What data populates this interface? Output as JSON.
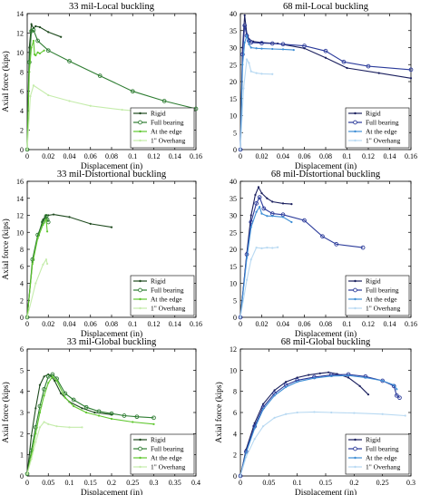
{
  "chart_data": [
    {
      "type": "line",
      "title": "33 mil-Local buckling",
      "xlabel": "Displacement (in)",
      "ylabel": "Axial force (kips)",
      "xlim": [
        0,
        0.16
      ],
      "ylim": [
        0,
        14
      ],
      "xticks": [
        "0",
        "0.02",
        "0.04",
        "0.06",
        "0.08",
        "0.1",
        "0.12",
        "0.14",
        "0.16"
      ],
      "yticks": [
        "0",
        "2",
        "4",
        "6",
        "8",
        "10",
        "12",
        "14"
      ],
      "grid": false,
      "legend": "bottom-right",
      "series": [
        {
          "name": "Rigid",
          "color": "#1e4a1e",
          "marker": "dot",
          "x": [
            0,
            0.002,
            0.004,
            0.006,
            0.008,
            0.012,
            0.02,
            0.032
          ],
          "y": [
            0,
            10.5,
            12.9,
            12.5,
            12.7,
            12.6,
            12.1,
            11.6
          ]
        },
        {
          "name": "Full bearing",
          "color": "#2e7d32",
          "marker": "circle",
          "x": [
            0,
            0.002,
            0.004,
            0.006,
            0.01,
            0.02,
            0.04,
            0.069,
            0.1,
            0.13,
            0.16
          ],
          "y": [
            0,
            9,
            12.2,
            12.3,
            11.2,
            10.2,
            9.1,
            7.6,
            6,
            5,
            4.2
          ]
        },
        {
          "name": "At the edge",
          "color": "#5fc72e",
          "marker": "dot",
          "x": [
            0,
            0.002,
            0.004,
            0.006,
            0.007,
            0.008,
            0.01,
            0.012,
            0.016
          ],
          "y": [
            0,
            8,
            10.5,
            11.2,
            9.8,
            9.7,
            10,
            9.9,
            10.2
          ]
        },
        {
          "name": "1\" Overhang",
          "color": "#c5ecab",
          "marker": "dot",
          "x": [
            0,
            0.003,
            0.006,
            0.02,
            0.04,
            0.06,
            0.09,
            0.11,
            0.13,
            0.15
          ],
          "y": [
            0,
            5.5,
            6.6,
            5.6,
            5.0,
            4.5,
            4.1,
            3.9,
            3.8,
            3.7
          ]
        }
      ]
    },
    {
      "type": "line",
      "title": "68 mil-Local buckling",
      "xlabel": "Displacement (in)",
      "ylabel": "",
      "xlim": [
        0,
        0.16
      ],
      "ylim": [
        0,
        40
      ],
      "xticks": [
        "0",
        "0.02",
        "0.04",
        "0.06",
        "0.08",
        "0.1",
        "0.12",
        "0.14",
        "0.16"
      ],
      "yticks": [
        "0",
        "5",
        "10",
        "15",
        "20",
        "25",
        "30",
        "35",
        "40"
      ],
      "grid": false,
      "legend": "bottom-right",
      "series": [
        {
          "name": "Rigid",
          "color": "#1a1f5e",
          "marker": "dot",
          "x": [
            0,
            0.002,
            0.004,
            0.006,
            0.008,
            0.012,
            0.02,
            0.035,
            0.06,
            0.08,
            0.1,
            0.13,
            0.16
          ],
          "y": [
            0,
            30,
            39.5,
            34,
            32.5,
            31.8,
            31.5,
            31.2,
            29.8,
            27,
            24,
            22.5,
            21
          ]
        },
        {
          "name": "Full bearing",
          "color": "#2a3a9a",
          "marker": "circle",
          "x": [
            0,
            0.002,
            0.004,
            0.006,
            0.008,
            0.01,
            0.02,
            0.03,
            0.04,
            0.06,
            0.08,
            0.097,
            0.12,
            0.16
          ],
          "y": [
            0,
            28,
            36.5,
            33.5,
            32,
            31.5,
            31.3,
            31.2,
            31,
            30.5,
            29,
            25.8,
            24.5,
            23.5
          ]
        },
        {
          "name": "At the edge",
          "color": "#3f8fd6",
          "marker": "dot",
          "x": [
            0,
            0.002,
            0.004,
            0.006,
            0.008,
            0.01,
            0.015,
            0.02,
            0.03,
            0.04,
            0.05
          ],
          "y": [
            0,
            25,
            31.5,
            33.5,
            31,
            30,
            29.8,
            29.7,
            29.6,
            29.5,
            29.3
          ]
        },
        {
          "name": "1\" Overhang",
          "color": "#b8d9f2",
          "marker": "dot",
          "x": [
            0,
            0.003,
            0.006,
            0.008,
            0.01,
            0.015,
            0.02,
            0.03
          ],
          "y": [
            0,
            18,
            26.5,
            25.5,
            23,
            22.5,
            22.3,
            22.2
          ]
        }
      ]
    },
    {
      "type": "line",
      "title": "33 mil-Distortional buckling",
      "xlabel": "Displacement (in)",
      "ylabel": "Axial force (kips)",
      "xlim": [
        0,
        0.16
      ],
      "ylim": [
        0,
        16
      ],
      "xticks": [
        "0",
        "0.02",
        "0.04",
        "0.06",
        "0.08",
        "0.1",
        "0.12",
        "0.14",
        "0.16"
      ],
      "yticks": [
        "0",
        "2",
        "4",
        "6",
        "8",
        "10",
        "12",
        "14",
        "16"
      ],
      "grid": false,
      "legend": "bottom-right",
      "series": [
        {
          "name": "Rigid",
          "color": "#1e4a1e",
          "marker": "dot",
          "x": [
            0,
            0.005,
            0.01,
            0.015,
            0.018,
            0.02,
            0.025,
            0.04,
            0.06,
            0.08
          ],
          "y": [
            0,
            6.5,
            9.5,
            11.5,
            12,
            12,
            12.1,
            11.8,
            11,
            10.6
          ]
        },
        {
          "name": "Full bearing",
          "color": "#2e7d32",
          "marker": "circle",
          "x": [
            0,
            0.005,
            0.01,
            0.015,
            0.018,
            0.019,
            0.02
          ],
          "y": [
            0,
            6.8,
            9.7,
            11.2,
            11.9,
            11.5,
            11.2
          ]
        },
        {
          "name": "At the edge",
          "color": "#5fc72e",
          "marker": "dot",
          "x": [
            0,
            0.005,
            0.01,
            0.015,
            0.018,
            0.019
          ],
          "y": [
            0,
            6.3,
            9.3,
            10.9,
            11.5,
            10.1
          ]
        },
        {
          "name": "1\" Overhang",
          "color": "#c5ecab",
          "marker": "dot",
          "x": [
            0,
            0.008,
            0.015,
            0.018,
            0.019
          ],
          "y": [
            0,
            4,
            6.2,
            6.8,
            6.3
          ]
        }
      ]
    },
    {
      "type": "line",
      "title": "68 mil-Distortional buckling",
      "xlabel": "Displacement (in)",
      "ylabel": "",
      "xlim": [
        0,
        0.16
      ],
      "ylim": [
        0,
        40
      ],
      "xticks": [
        "0",
        "0.02",
        "0.04",
        "0.06",
        "0.08",
        "0.1",
        "0.12",
        "0.14",
        "0.16"
      ],
      "yticks": [
        "0",
        "5",
        "10",
        "15",
        "20",
        "25",
        "30",
        "35",
        "40"
      ],
      "grid": false,
      "legend": "bottom-right",
      "series": [
        {
          "name": "Rigid",
          "color": "#1a1f5e",
          "marker": "dot",
          "x": [
            0,
            0.006,
            0.01,
            0.014,
            0.017,
            0.02,
            0.025,
            0.03,
            0.04,
            0.048
          ],
          "y": [
            0,
            19,
            30,
            36,
            38.3,
            36.5,
            35,
            34,
            33.5,
            33.3
          ]
        },
        {
          "name": "Full bearing",
          "color": "#2a3a9a",
          "marker": "circle",
          "x": [
            0,
            0.006,
            0.01,
            0.015,
            0.018,
            0.022,
            0.03,
            0.04,
            0.06,
            0.077,
            0.09,
            0.115
          ],
          "y": [
            0,
            18.5,
            28,
            33.5,
            35.3,
            32,
            30.5,
            30.2,
            28.5,
            23.8,
            21.5,
            20.5
          ]
        },
        {
          "name": "At the edge",
          "color": "#3f8fd6",
          "marker": "dot",
          "x": [
            0,
            0.006,
            0.01,
            0.015,
            0.018,
            0.02,
            0.025,
            0.03,
            0.04,
            0.048
          ],
          "y": [
            0,
            17.5,
            26.5,
            31,
            32.5,
            30.5,
            29.8,
            29.8,
            29.5,
            28
          ]
        },
        {
          "name": "1\" Overhang",
          "color": "#b8d9f2",
          "marker": "dot",
          "x": [
            0,
            0.006,
            0.01,
            0.015,
            0.02,
            0.025,
            0.03,
            0.035
          ],
          "y": [
            0,
            11,
            17,
            20.5,
            20.3,
            20.5,
            20.4,
            20.6
          ]
        }
      ]
    },
    {
      "type": "line",
      "title": "33 mil-Global buckling",
      "xlabel": "Displacement (in)",
      "ylabel": "Axial force (kips)",
      "xlim": [
        0,
        0.4
      ],
      "ylim": [
        0,
        6
      ],
      "xticks": [
        "0",
        "0.05",
        "0.1",
        "0.15",
        "0.2",
        "0.25",
        "0.3",
        "0.35",
        "0.4"
      ],
      "yticks": [
        "0",
        "1",
        "2",
        "3",
        "4",
        "5",
        "6"
      ],
      "grid": false,
      "legend": "bottom-right",
      "series": [
        {
          "name": "Rigid",
          "color": "#1e4a1e",
          "marker": "dot",
          "x": [
            0,
            0.01,
            0.02,
            0.03,
            0.04,
            0.05,
            0.055,
            0.065,
            0.08,
            0.1,
            0.13,
            0.16,
            0.2
          ],
          "y": [
            0.1,
            1.9,
            3.2,
            4.3,
            4.7,
            4.8,
            4.75,
            4.5,
            3.9,
            3.5,
            3.2,
            3.0,
            2.9
          ]
        },
        {
          "name": "Full bearing",
          "color": "#2e7d32",
          "marker": "circle",
          "x": [
            0,
            0.01,
            0.02,
            0.03,
            0.04,
            0.05,
            0.06,
            0.07,
            0.09,
            0.11,
            0.14,
            0.17,
            0.2,
            0.23,
            0.26,
            0.3
          ],
          "y": [
            0.1,
            1.2,
            2.3,
            3.3,
            4.1,
            4.7,
            4.8,
            4.6,
            3.9,
            3.6,
            3.25,
            3.05,
            2.95,
            2.85,
            2.8,
            2.75
          ]
        },
        {
          "name": "At the edge",
          "color": "#5fc72e",
          "marker": "dot",
          "x": [
            0,
            0.01,
            0.02,
            0.03,
            0.04,
            0.05,
            0.06,
            0.07,
            0.09,
            0.11,
            0.14,
            0.17,
            0.2,
            0.25,
            0.3
          ],
          "y": [
            0.1,
            1.0,
            2.0,
            3.0,
            3.8,
            4.4,
            4.7,
            4.5,
            3.7,
            3.3,
            3.0,
            2.85,
            2.7,
            2.55,
            2.45
          ]
        },
        {
          "name": "1\" Overhang",
          "color": "#c5ecab",
          "marker": "dot",
          "x": [
            0,
            0.01,
            0.02,
            0.03,
            0.04,
            0.05,
            0.07,
            0.1,
            0.13
          ],
          "y": [
            0.1,
            0.8,
            1.6,
            2.3,
            2.55,
            2.45,
            2.35,
            2.3,
            2.3
          ]
        }
      ]
    },
    {
      "type": "line",
      "title": "68 mil-Global buckling",
      "xlabel": "Displacement (in)",
      "ylabel": "Axial force (kips)",
      "xlim": [
        0,
        0.3
      ],
      "ylim": [
        0,
        12
      ],
      "xticks": [
        "0",
        "0.05",
        "0.1",
        "0.15",
        "0.2",
        "0.25",
        "0.3"
      ],
      "yticks": [
        "0",
        "2",
        "4",
        "6",
        "8",
        "10",
        "12"
      ],
      "grid": false,
      "legend": "bottom-right",
      "series": [
        {
          "name": "Rigid",
          "color": "#1a1f5e",
          "marker": "dot",
          "x": [
            0,
            0.01,
            0.025,
            0.04,
            0.06,
            0.08,
            0.1,
            0.12,
            0.14,
            0.155,
            0.17,
            0.19,
            0.21,
            0.225
          ],
          "y": [
            0,
            2.5,
            5,
            6.8,
            8.1,
            8.9,
            9.3,
            9.55,
            9.7,
            9.8,
            9.65,
            9.3,
            8.5,
            7.7
          ]
        },
        {
          "name": "Full bearing",
          "color": "#2a3a9a",
          "marker": "circle",
          "x": [
            0,
            0.01,
            0.025,
            0.04,
            0.06,
            0.08,
            0.1,
            0.13,
            0.16,
            0.19,
            0.22,
            0.25,
            0.27,
            0.275,
            0.28
          ],
          "y": [
            0,
            2.3,
            4.7,
            6.5,
            7.8,
            8.6,
            9.05,
            9.35,
            9.55,
            9.6,
            9.4,
            9.0,
            8.5,
            7.6,
            7.4
          ]
        },
        {
          "name": "At the edge",
          "color": "#3f8fd6",
          "marker": "dot",
          "x": [
            0,
            0.01,
            0.025,
            0.04,
            0.06,
            0.08,
            0.1,
            0.13,
            0.16,
            0.19,
            0.22,
            0.25,
            0.27,
            0.275
          ],
          "y": [
            0,
            2.2,
            4.5,
            6.3,
            7.6,
            8.4,
            8.9,
            9.25,
            9.45,
            9.5,
            9.3,
            9.0,
            8.6,
            8.2
          ]
        },
        {
          "name": "1\" Overhang",
          "color": "#b8d9f2",
          "marker": "dot",
          "x": [
            0,
            0.01,
            0.025,
            0.04,
            0.06,
            0.08,
            0.1,
            0.13,
            0.16,
            0.2,
            0.25,
            0.29
          ],
          "y": [
            0,
            1.8,
            3.5,
            4.7,
            5.5,
            5.85,
            6.0,
            6.05,
            6.0,
            5.95,
            5.85,
            5.7
          ]
        }
      ]
    }
  ]
}
